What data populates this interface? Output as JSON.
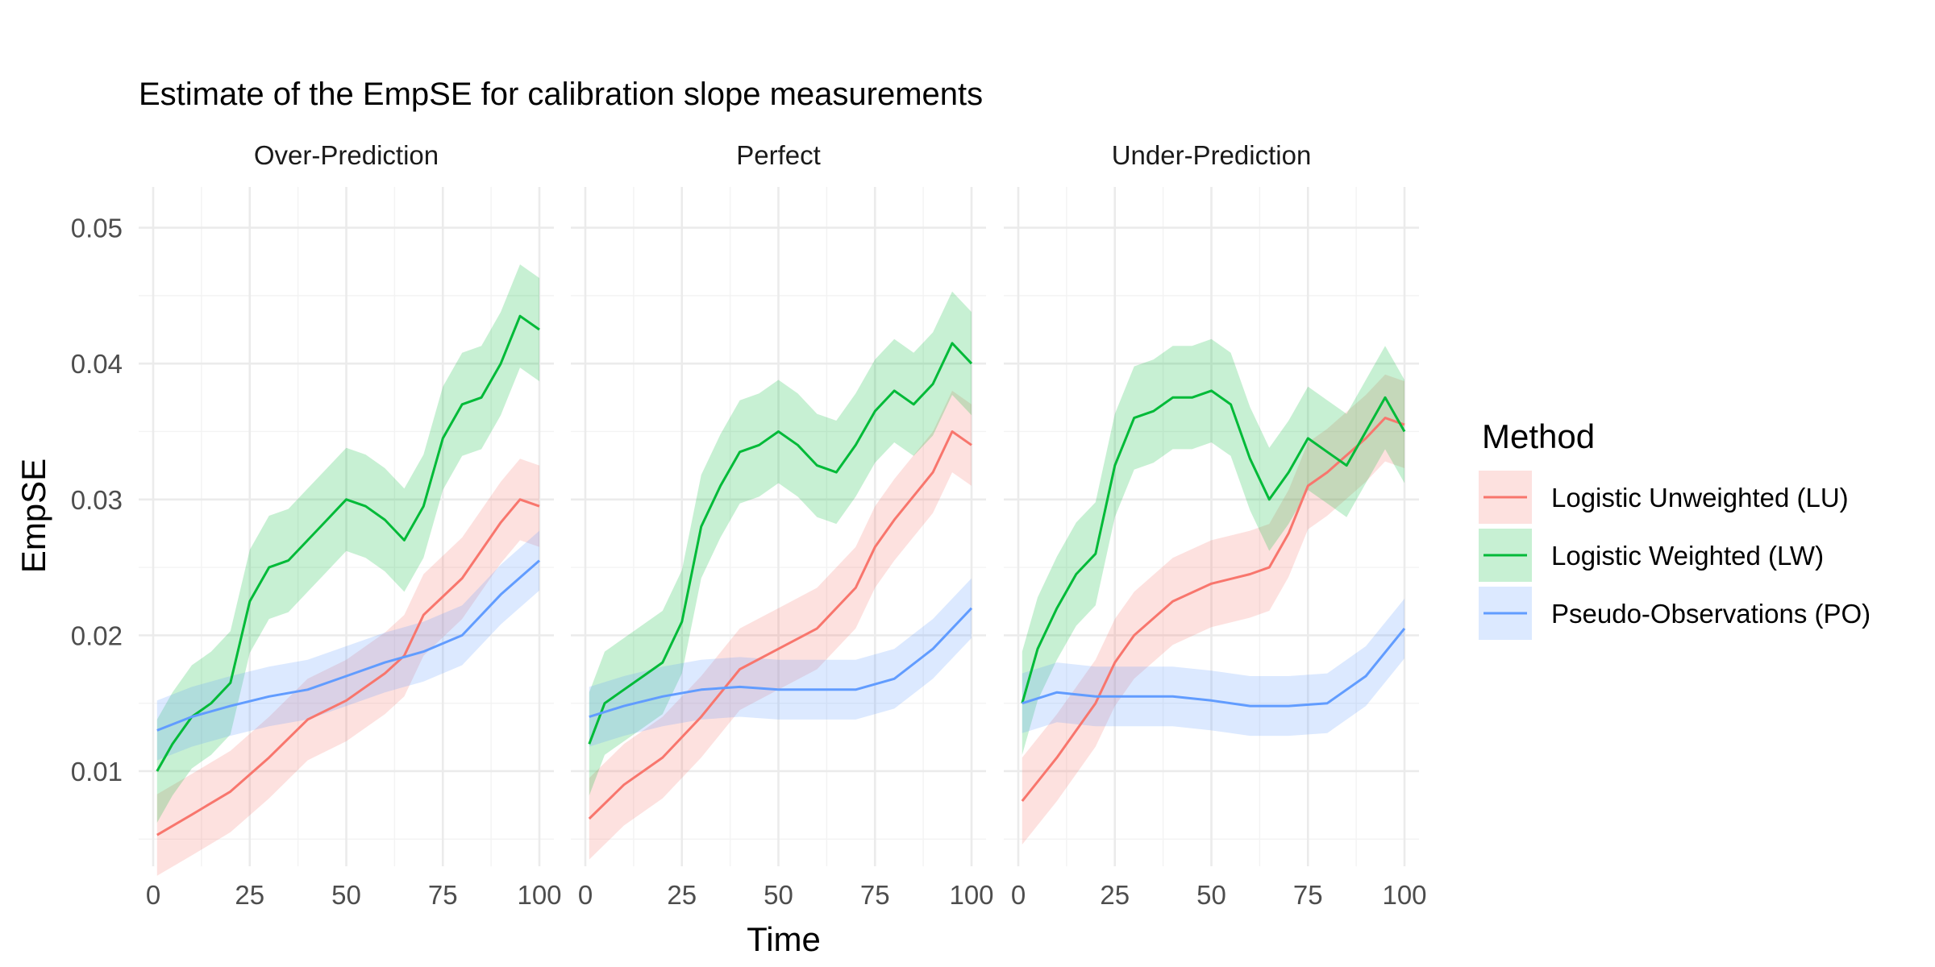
{
  "chart_data": {
    "type": "line",
    "title": "Estimate of the EmpSE for calibration slope measurements",
    "xlabel": "Time",
    "ylabel": "EmpSE",
    "xlim": [
      0,
      100
    ],
    "ylim": [
      0.003,
      0.053
    ],
    "x_ticks": [
      "0",
      "25",
      "50",
      "75",
      "100"
    ],
    "y_ticks": [
      "0.01",
      "0.02",
      "0.03",
      "0.04",
      "0.05"
    ],
    "grid": true,
    "legend": {
      "title": "Method",
      "placement": "right",
      "entries": [
        "Logistic Unweighted (LU)",
        "Logistic Weighted (LW)",
        "Pseudo-Observations (PO)"
      ]
    },
    "colors": {
      "LU": "#F8766D",
      "LW": "#00BA38",
      "PO": "#619CFF"
    },
    "panels": [
      {
        "name": "Over-Prediction",
        "series": [
          {
            "name": "Logistic Unweighted (LU)",
            "key": "LU",
            "x": [
              1,
              10,
              20,
              30,
              40,
              50,
              60,
              65,
              70,
              80,
              90,
              95,
              100
            ],
            "y": [
              0.0053,
              0.0068,
              0.0085,
              0.011,
              0.0138,
              0.0152,
              0.0172,
              0.0185,
              0.0215,
              0.0242,
              0.0283,
              0.03,
              0.0295
            ],
            "band": 0.003
          },
          {
            "name": "Logistic Weighted (LW)",
            "key": "LW",
            "x": [
              1,
              5,
              10,
              15,
              20,
              25,
              30,
              35,
              40,
              45,
              50,
              55,
              60,
              65,
              70,
              75,
              80,
              85,
              90,
              95,
              100
            ],
            "y": [
              0.01,
              0.012,
              0.014,
              0.015,
              0.0165,
              0.0225,
              0.025,
              0.0255,
              0.027,
              0.0285,
              0.03,
              0.0295,
              0.0285,
              0.027,
              0.0295,
              0.0345,
              0.037,
              0.0375,
              0.04,
              0.0435,
              0.0425
            ],
            "band": 0.0038
          },
          {
            "name": "Pseudo-Observations (PO)",
            "key": "PO",
            "x": [
              1,
              10,
              20,
              30,
              40,
              50,
              60,
              70,
              80,
              90,
              100
            ],
            "y": [
              0.013,
              0.014,
              0.0148,
              0.0155,
              0.016,
              0.017,
              0.018,
              0.0188,
              0.02,
              0.023,
              0.0255
            ],
            "band": 0.0022
          }
        ]
      },
      {
        "name": "Perfect",
        "series": [
          {
            "name": "Logistic Unweighted (LU)",
            "key": "LU",
            "x": [
              1,
              10,
              20,
              30,
              40,
              50,
              60,
              70,
              75,
              80,
              90,
              95,
              100
            ],
            "y": [
              0.0065,
              0.009,
              0.011,
              0.014,
              0.0175,
              0.019,
              0.0205,
              0.0235,
              0.0265,
              0.0285,
              0.032,
              0.035,
              0.034
            ],
            "band": 0.003
          },
          {
            "name": "Logistic Weighted (LW)",
            "key": "LW",
            "x": [
              1,
              5,
              10,
              15,
              20,
              25,
              30,
              35,
              40,
              45,
              50,
              55,
              60,
              65,
              70,
              75,
              80,
              85,
              90,
              95,
              100
            ],
            "y": [
              0.012,
              0.015,
              0.016,
              0.017,
              0.018,
              0.021,
              0.028,
              0.031,
              0.0335,
              0.034,
              0.035,
              0.034,
              0.0325,
              0.032,
              0.034,
              0.0365,
              0.038,
              0.037,
              0.0385,
              0.0415,
              0.04
            ],
            "band": 0.0038
          },
          {
            "name": "Pseudo-Observations (PO)",
            "key": "PO",
            "x": [
              1,
              10,
              20,
              30,
              40,
              50,
              60,
              70,
              80,
              90,
              100
            ],
            "y": [
              0.014,
              0.0148,
              0.0155,
              0.016,
              0.0162,
              0.016,
              0.016,
              0.016,
              0.0168,
              0.019,
              0.022
            ],
            "band": 0.0022
          }
        ]
      },
      {
        "name": "Under-Prediction",
        "series": [
          {
            "name": "Logistic Unweighted (LU)",
            "key": "LU",
            "x": [
              1,
              10,
              20,
              25,
              30,
              40,
              50,
              60,
              65,
              70,
              75,
              80,
              90,
              95,
              100
            ],
            "y": [
              0.0078,
              0.011,
              0.015,
              0.018,
              0.02,
              0.0225,
              0.0238,
              0.0245,
              0.025,
              0.0275,
              0.031,
              0.032,
              0.0345,
              0.036,
              0.0355
            ],
            "band": 0.0032
          },
          {
            "name": "Logistic Weighted (LW)",
            "key": "LW",
            "x": [
              1,
              5,
              10,
              15,
              20,
              25,
              30,
              35,
              40,
              45,
              50,
              55,
              60,
              65,
              70,
              75,
              80,
              85,
              90,
              95,
              100
            ],
            "y": [
              0.015,
              0.019,
              0.022,
              0.0245,
              0.026,
              0.0325,
              0.036,
              0.0365,
              0.0375,
              0.0375,
              0.038,
              0.037,
              0.033,
              0.03,
              0.032,
              0.0345,
              0.0335,
              0.0325,
              0.035,
              0.0375,
              0.035
            ],
            "band": 0.0038
          },
          {
            "name": "Pseudo-Observations (PO)",
            "key": "PO",
            "x": [
              1,
              10,
              20,
              30,
              40,
              50,
              60,
              70,
              80,
              90,
              100
            ],
            "y": [
              0.015,
              0.0158,
              0.0155,
              0.0155,
              0.0155,
              0.0152,
              0.0148,
              0.0148,
              0.015,
              0.017,
              0.0205
            ],
            "band": 0.0022
          }
        ]
      }
    ]
  }
}
